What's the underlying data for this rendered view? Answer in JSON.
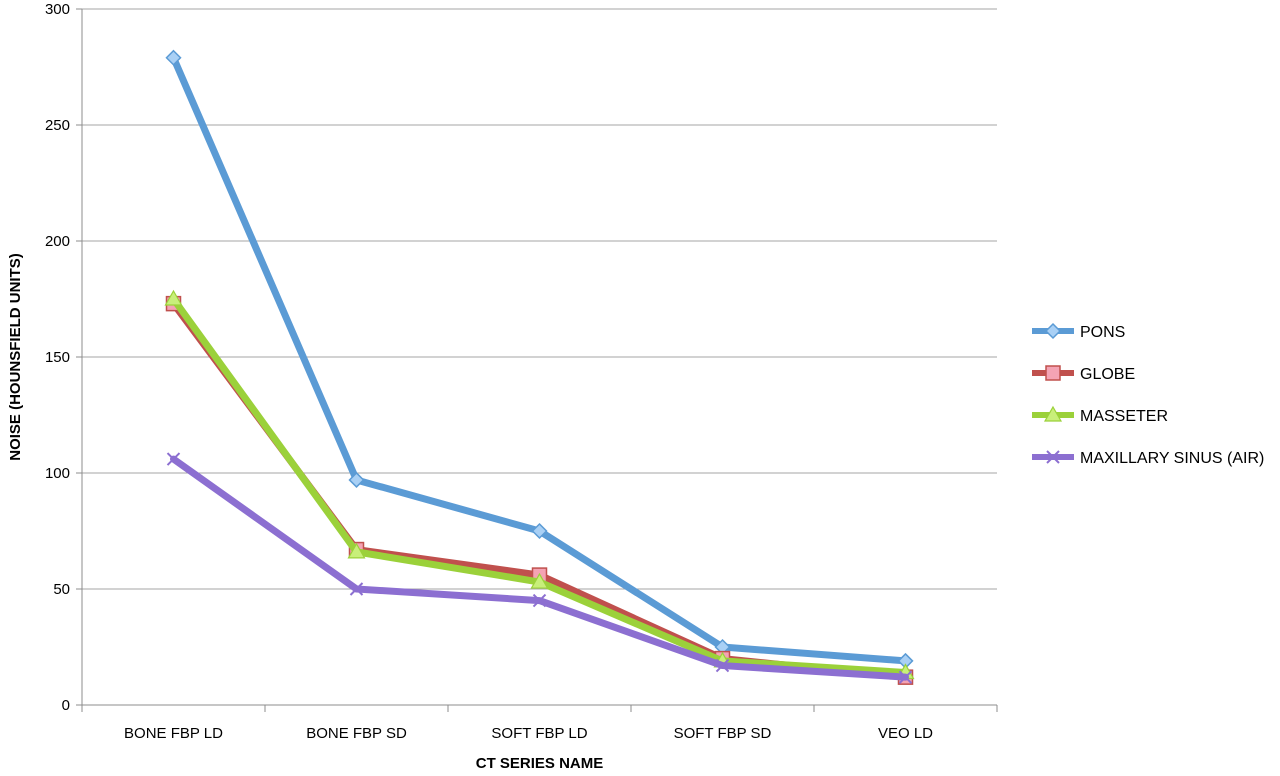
{
  "chart_data": {
    "type": "line",
    "xlabel": "CT SERIES NAME",
    "ylabel": "NOISE (HOUNSFIELD UNITS)",
    "categories": [
      "BONE FBP LD",
      "BONE FBP SD",
      "SOFT FBP LD",
      "SOFT FBP SD",
      "VEO LD"
    ],
    "ylim": [
      0,
      300
    ],
    "yticks": [
      0,
      50,
      100,
      150,
      200,
      250,
      300
    ],
    "grid": "horizontal",
    "legend_position": "right",
    "series": [
      {
        "name": "PONS",
        "values": [
          279,
          97,
          75,
          25,
          19
        ],
        "color": "#5b9bd5",
        "marker": "diamond"
      },
      {
        "name": "GLOBE",
        "values": [
          173,
          67,
          56,
          20,
          12
        ],
        "color": "#c0504d",
        "marker": "square"
      },
      {
        "name": "MASSETER",
        "values": [
          175,
          66,
          53,
          19,
          14
        ],
        "color": "#9bd13a",
        "marker": "triangle"
      },
      {
        "name": "MAXILLARY SINUS (AIR)",
        "values": [
          106,
          50,
          45,
          17,
          12
        ],
        "color": "#8c6fd1",
        "marker": "x"
      }
    ]
  }
}
